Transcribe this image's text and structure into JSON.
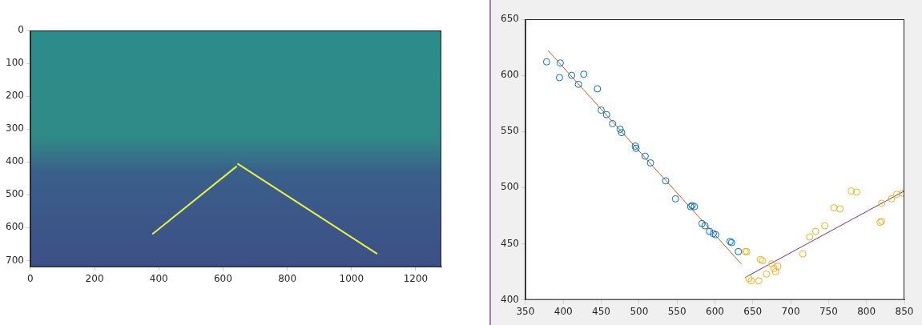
{
  "chart_data": [
    {
      "type": "line",
      "xlim": [
        0,
        1280
      ],
      "xticks": [
        0,
        200,
        400,
        600,
        800,
        1000,
        1200
      ],
      "ylim": [
        720,
        0
      ],
      "yticks": [
        0,
        100,
        200,
        300,
        400,
        500,
        600,
        700
      ],
      "grid": false,
      "series": [
        {
          "color": "#e8f04a",
          "x": [
            380,
            643
          ],
          "values": [
            620,
            413
          ]
        },
        {
          "color": "#e8f04a",
          "x": [
            645,
            1080
          ],
          "values": [
            405,
            680
          ]
        }
      ]
    },
    {
      "type": "scatter",
      "xlim": [
        350,
        850
      ],
      "xticks": [
        350,
        400,
        450,
        500,
        550,
        600,
        650,
        700,
        750,
        800,
        850
      ],
      "ylim": [
        400,
        650
      ],
      "yticks": [
        400,
        450,
        500,
        550,
        600,
        650
      ],
      "grid": false,
      "series": [
        {
          "type": "scatter",
          "marker": "circle",
          "color": "#0072bd",
          "x": [
            378,
            395,
            396,
            411,
            420,
            427,
            445,
            450,
            457,
            465,
            475,
            477,
            495,
            496,
            508,
            515,
            535,
            548,
            568,
            570,
            573,
            583,
            587,
            593,
            598,
            601,
            620,
            622,
            631
          ],
          "values": [
            612,
            598,
            611,
            600,
            592,
            601,
            588,
            569,
            565,
            557,
            552,
            549,
            537,
            535,
            528,
            522,
            506,
            490,
            483,
            484,
            483,
            468,
            466,
            461,
            459,
            458,
            452,
            451,
            443
          ]
        },
        {
          "type": "scatter",
          "marker": "circle",
          "color": "#edb120",
          "x": [
            640,
            642,
            645,
            648,
            658,
            660,
            663,
            668,
            675,
            678,
            680,
            683,
            716,
            725,
            733,
            745,
            757,
            765,
            780,
            787,
            818,
            820,
            820,
            833,
            840,
            848
          ],
          "values": [
            443,
            443,
            419,
            417,
            417,
            436,
            435,
            423,
            432,
            428,
            425,
            430,
            441,
            456,
            461,
            466,
            482,
            481,
            497,
            496,
            469,
            470,
            486,
            490,
            494,
            495
          ]
        },
        {
          "type": "line",
          "color": "#d95319",
          "x": [
            380,
            635
          ],
          "values": [
            622,
            432
          ]
        },
        {
          "type": "line",
          "color": "#7e2f8e",
          "x": [
            640,
            850
          ],
          "values": [
            420,
            497
          ]
        }
      ]
    }
  ]
}
